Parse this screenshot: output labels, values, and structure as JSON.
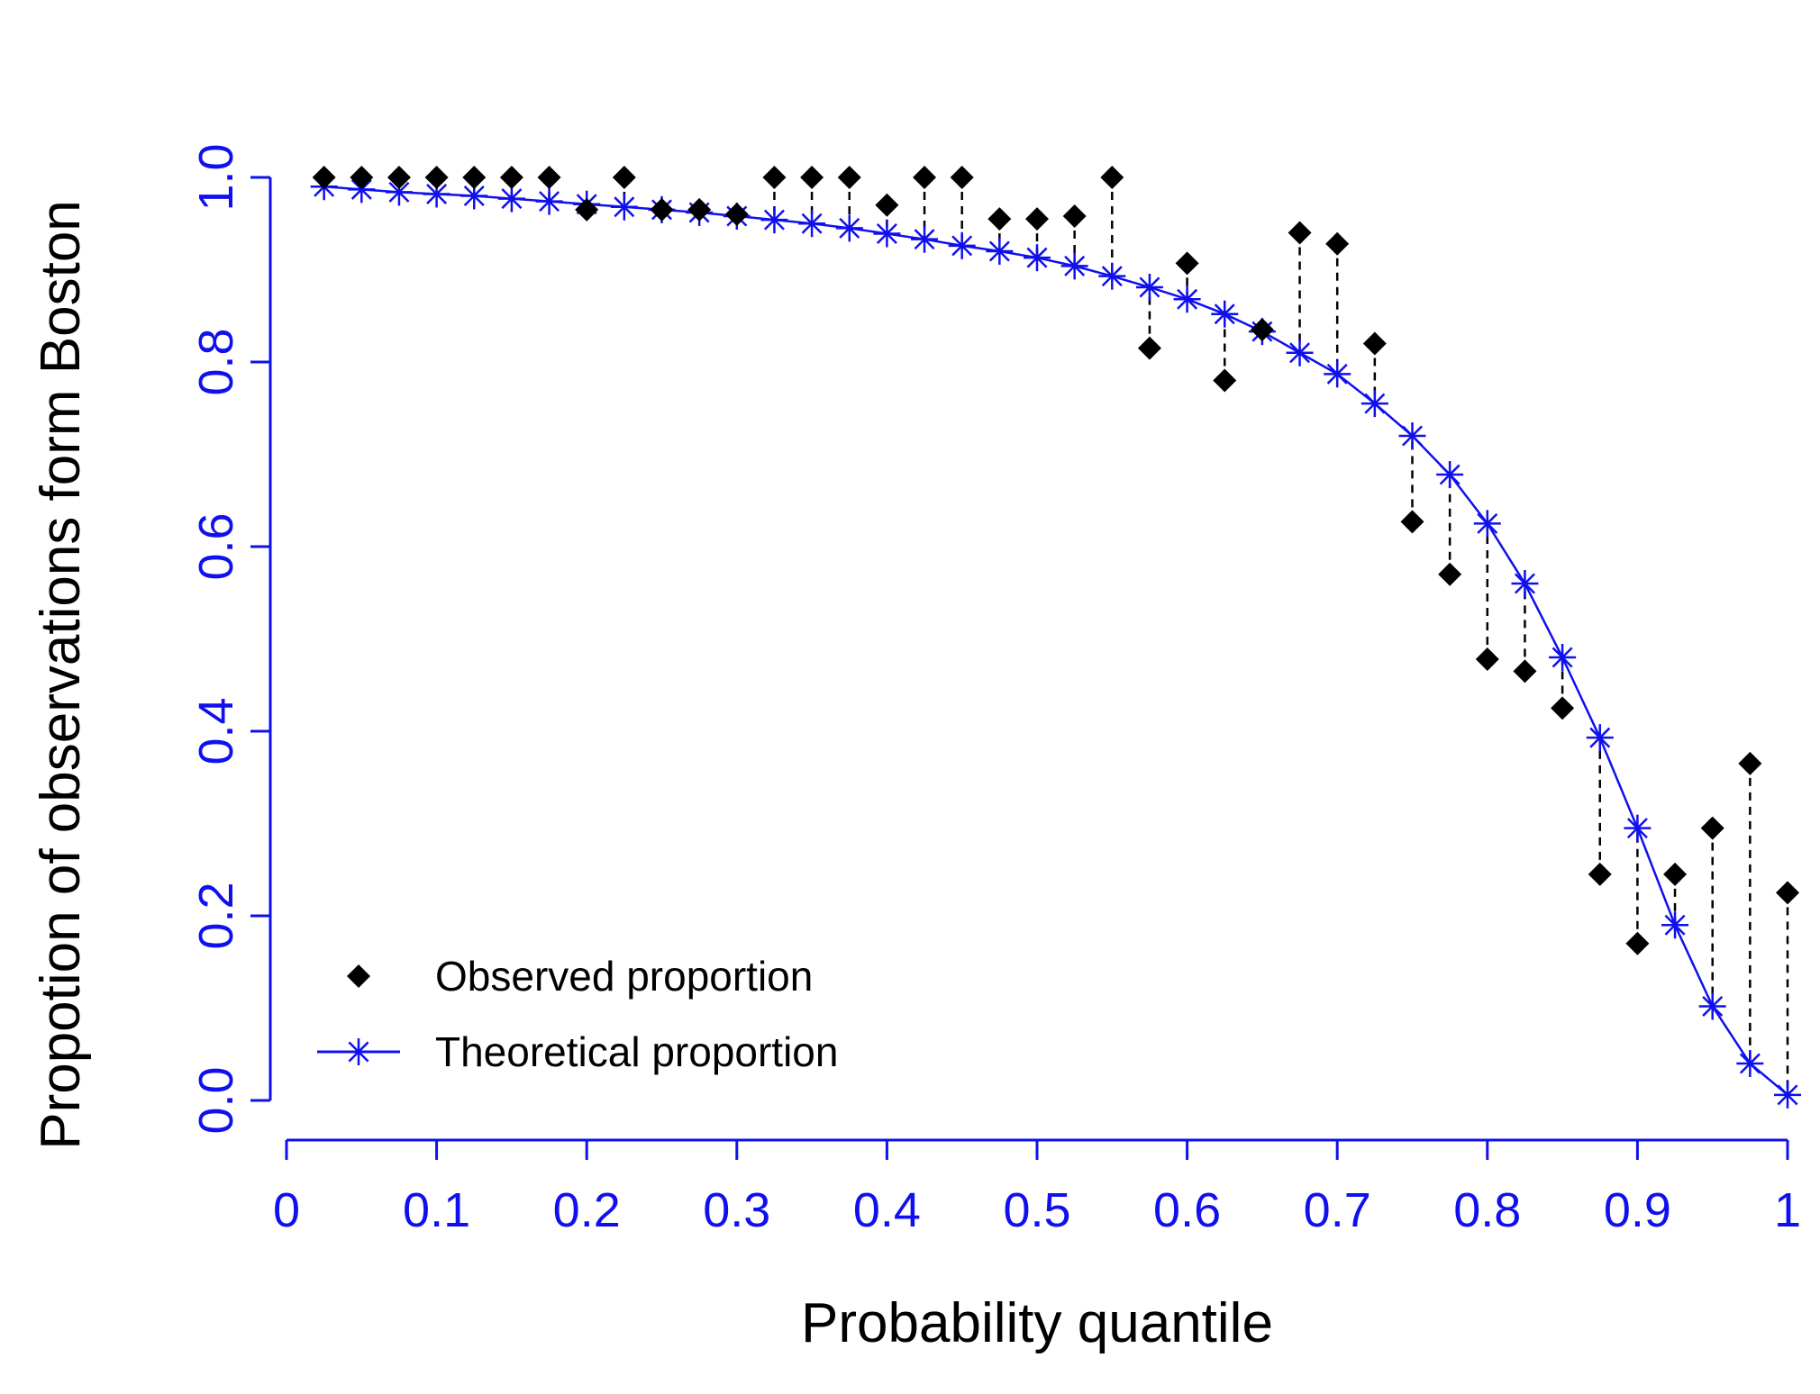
{
  "chart_data": {
    "type": "scatter",
    "title": "",
    "xlabel": "Probability quantile",
    "ylabel": "Propotion of observations form Boston",
    "xlim": [
      0,
      1
    ],
    "ylim": [
      0,
      1
    ],
    "x_ticks": [
      0,
      0.1,
      0.2,
      0.3,
      0.4,
      0.5,
      0.6,
      0.7,
      0.8,
      0.9,
      1
    ],
    "x_tick_labels": [
      "0",
      "0.1",
      "0.2",
      "0.3",
      "0.4",
      "0.5",
      "0.6",
      "0.7",
      "0.8",
      "0.9",
      "1"
    ],
    "y_ticks": [
      0,
      0.2,
      0.4,
      0.6,
      0.8,
      1.0
    ],
    "y_tick_labels": [
      "0.0",
      "0.2",
      "0.4",
      "0.6",
      "0.8",
      "1.0"
    ],
    "grid": false,
    "legend_position": "bottom-left",
    "x": [
      0.025,
      0.05,
      0.075,
      0.1,
      0.125,
      0.15,
      0.175,
      0.2,
      0.225,
      0.25,
      0.275,
      0.3,
      0.325,
      0.35,
      0.375,
      0.4,
      0.425,
      0.45,
      0.475,
      0.5,
      0.525,
      0.55,
      0.575,
      0.6,
      0.625,
      0.65,
      0.675,
      0.7,
      0.725,
      0.75,
      0.775,
      0.8,
      0.825,
      0.85,
      0.875,
      0.9,
      0.925,
      0.95,
      0.975,
      1.0
    ],
    "series": [
      {
        "name": "Observed proportion",
        "marker": "filled-diamond",
        "color": "#000000",
        "values": [
          1.0,
          1.0,
          1.0,
          1.0,
          1.0,
          1.0,
          1.0,
          0.965,
          1.0,
          0.965,
          0.965,
          0.96,
          1.0,
          1.0,
          1.0,
          0.97,
          1.0,
          1.0,
          0.955,
          0.955,
          0.958,
          1.0,
          0.815,
          0.907,
          0.78,
          0.835,
          0.94,
          0.928,
          0.82,
          0.627,
          0.57,
          0.478,
          0.465,
          0.425,
          0.245,
          0.17,
          0.245,
          0.295,
          0.365,
          0.225
        ]
      },
      {
        "name": "Theoretical proportion",
        "marker": "asterisk",
        "color": "#1010ee",
        "values": [
          0.99,
          0.987,
          0.984,
          0.982,
          0.98,
          0.977,
          0.974,
          0.971,
          0.968,
          0.965,
          0.962,
          0.958,
          0.954,
          0.95,
          0.945,
          0.939,
          0.933,
          0.926,
          0.92,
          0.913,
          0.904,
          0.893,
          0.881,
          0.868,
          0.852,
          0.833,
          0.81,
          0.787,
          0.755,
          0.72,
          0.678,
          0.625,
          0.56,
          0.48,
          0.393,
          0.295,
          0.19,
          0.102,
          0.04,
          0.006
        ]
      }
    ]
  },
  "colors": {
    "axis": "#1010ee",
    "observed": "#000000",
    "theoretical": "#1010ee",
    "residual_line": "#000000"
  }
}
